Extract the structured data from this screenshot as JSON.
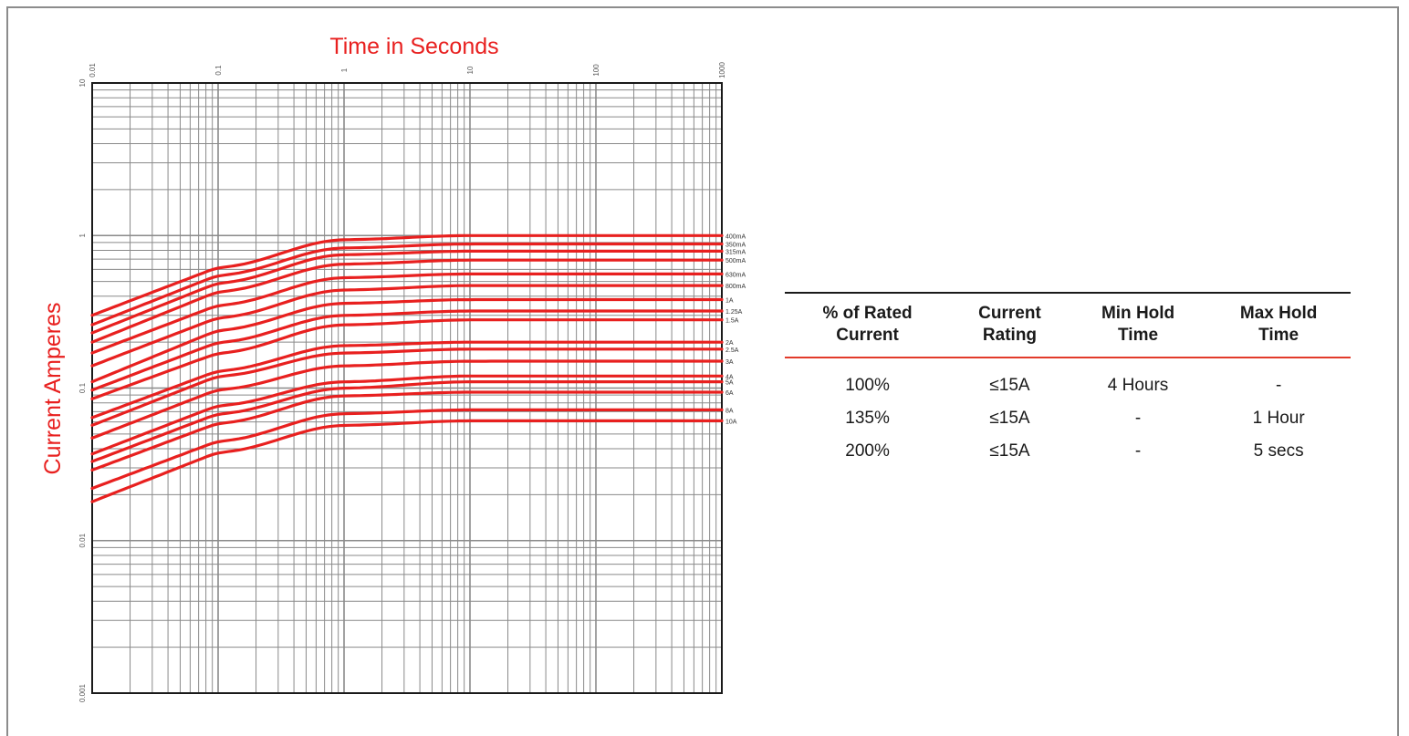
{
  "chart_data": {
    "type": "line",
    "title": "Time in Seconds",
    "ylabel": "Current Amperes",
    "x_scale": "log",
    "y_scale": "log",
    "x_ticks": [
      "0.01",
      "0.1",
      "1",
      "10",
      "100",
      "1000"
    ],
    "y_ticks": [
      "10",
      "1",
      "0.1",
      "0.01",
      "0.001"
    ],
    "xlim": [
      0.01,
      1000
    ],
    "ylim": [
      0.001,
      10
    ],
    "grid": true,
    "series": [
      {
        "name": "400mA",
        "x": [
          0.01,
          0.1,
          1,
          10,
          1000
        ],
        "y": [
          0.3,
          0.62,
          0.94,
          1.0,
          1.0
        ]
      },
      {
        "name": "350mA",
        "x": [
          0.01,
          0.1,
          1,
          10,
          1000
        ],
        "y": [
          0.26,
          0.55,
          0.83,
          0.88,
          0.88
        ]
      },
      {
        "name": "315mA",
        "x": [
          0.01,
          0.1,
          1,
          10,
          1000
        ],
        "y": [
          0.23,
          0.49,
          0.75,
          0.79,
          0.79
        ]
      },
      {
        "name": "500mA",
        "x": [
          0.01,
          0.1,
          1,
          10,
          1000
        ],
        "y": [
          0.2,
          0.43,
          0.65,
          0.69,
          0.69
        ]
      },
      {
        "name": "630mA",
        "x": [
          0.01,
          0.1,
          1,
          10,
          1000
        ],
        "y": [
          0.17,
          0.35,
          0.53,
          0.56,
          0.56
        ]
      },
      {
        "name": "800mA",
        "x": [
          0.01,
          0.1,
          1,
          10,
          1000
        ],
        "y": [
          0.14,
          0.29,
          0.44,
          0.47,
          0.47
        ]
      },
      {
        "name": "1A",
        "x": [
          0.01,
          0.1,
          1,
          10,
          1000
        ],
        "y": [
          0.11,
          0.24,
          0.36,
          0.38,
          0.38
        ]
      },
      {
        "name": "1.25A",
        "x": [
          0.01,
          0.1,
          1,
          10,
          1000
        ],
        "y": [
          0.097,
          0.2,
          0.3,
          0.32,
          0.32
        ]
      },
      {
        "name": "1.5A",
        "x": [
          0.01,
          0.1,
          1,
          10,
          1000
        ],
        "y": [
          0.085,
          0.17,
          0.26,
          0.28,
          0.28
        ]
      },
      {
        "name": "2A",
        "x": [
          0.01,
          0.1,
          1,
          10,
          1000
        ],
        "y": [
          0.064,
          0.13,
          0.19,
          0.2,
          0.2
        ]
      },
      {
        "name": "2.5A",
        "x": [
          0.01,
          0.1,
          1,
          10,
          1000
        ],
        "y": [
          0.057,
          0.12,
          0.17,
          0.18,
          0.18
        ]
      },
      {
        "name": "3A",
        "x": [
          0.01,
          0.1,
          1,
          10,
          1000
        ],
        "y": [
          0.047,
          0.098,
          0.14,
          0.15,
          0.15
        ]
      },
      {
        "name": "4A",
        "x": [
          0.01,
          0.1,
          1,
          10,
          1000
        ],
        "y": [
          0.037,
          0.077,
          0.11,
          0.12,
          0.12
        ]
      },
      {
        "name": "5A",
        "x": [
          0.01,
          0.1,
          1,
          10,
          1000
        ],
        "y": [
          0.033,
          0.068,
          0.1,
          0.11,
          0.11
        ]
      },
      {
        "name": "6A",
        "x": [
          0.01,
          0.1,
          1,
          10,
          1000
        ],
        "y": [
          0.029,
          0.059,
          0.089,
          0.094,
          0.094
        ]
      },
      {
        "name": "8A",
        "x": [
          0.01,
          0.1,
          1,
          10,
          1000
        ],
        "y": [
          0.022,
          0.045,
          0.068,
          0.072,
          0.072
        ]
      },
      {
        "name": "10A",
        "x": [
          0.01,
          0.1,
          1,
          10,
          1000
        ],
        "y": [
          0.018,
          0.038,
          0.057,
          0.061,
          0.061
        ]
      }
    ],
    "colors": {
      "curve": "#e8201f",
      "title": "#e8201f",
      "grid": "#8a8a8a",
      "axis": "#1a1a1a"
    }
  },
  "table": {
    "headers": [
      [
        "% of Rated",
        "Current"
      ],
      [
        "Current",
        "Rating"
      ],
      [
        "Min Hold",
        "Time"
      ],
      [
        "Max Hold",
        "Time"
      ]
    ],
    "rows": [
      [
        "100%",
        "≤15A",
        "4 Hours",
        "-"
      ],
      [
        "135%",
        "≤15A",
        "-",
        "1 Hour"
      ],
      [
        "200%",
        "≤15A",
        "-",
        "5 secs"
      ]
    ],
    "colors": {
      "header_top_rule": "#1a1a1a",
      "header_bottom_rule": "#e23a2a"
    }
  }
}
